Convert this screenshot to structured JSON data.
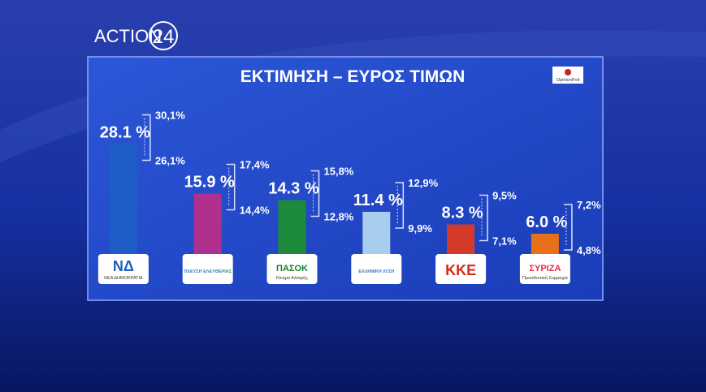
{
  "brand": {
    "name": "ACTION",
    "number": "24"
  },
  "chart_data": {
    "type": "bar",
    "title": "ΕΚΤΙΜΗΣΗ – ΕΥΡΟΣ ΤΙΜΩΝ",
    "source": "OpinionPoll",
    "categories": [
      "ΝΔ",
      "ΠΛΕΥΣΗ ΕΛΕΥΘΕΡΙΑΣ",
      "ΠΑΣΟΚ",
      "ΕΛΛΗΝΙΚΗ ΛΥΣΗ",
      "ΚΚΕ",
      "ΣΥΡΙΖΑ"
    ],
    "category_subtitles": [
      "ΝΕΑ ΔΗΜΟΚΡΑΤΙΑ",
      null,
      "Κίνημα Αλλαγής",
      null,
      null,
      "Προοδευτική Συμμαχία"
    ],
    "category_colors": [
      "#1f5fbf",
      "#2a8ab0",
      "#1b7a2e",
      "#3a78c0",
      "#d42a1e",
      "#e0304a"
    ],
    "values": [
      28.1,
      15.9,
      14.3,
      11.4,
      8.3,
      6.0
    ],
    "value_labels": [
      "28.1 %",
      "15.9 %",
      "14.3 %",
      "11.4 %",
      "8.3 %",
      "6.0 %"
    ],
    "colors": [
      "#1e5cc8",
      "#b0308e",
      "#1e8a3c",
      "#a8cdef",
      "#d43a2a",
      "#e8701a"
    ],
    "range_high": {
      "values": [
        30.1,
        17.4,
        15.8,
        12.9,
        9.5,
        7.2
      ],
      "value_labels": [
        "30,1%",
        "17,4%",
        "15,8%",
        "12,9%",
        "9,5%",
        "7,2%"
      ]
    },
    "range_low": {
      "values": [
        26.1,
        14.4,
        12.8,
        9.9,
        7.1,
        4.8
      ],
      "value_labels": [
        "26,1%",
        "14,4%",
        "12,8%",
        "9,9%",
        "7,1%",
        "4,8%"
      ]
    }
  }
}
